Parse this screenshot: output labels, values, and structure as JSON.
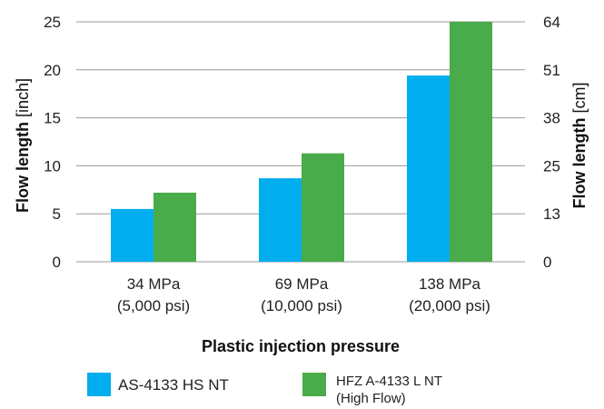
{
  "chart_data": {
    "type": "bar",
    "categories": [
      [
        "34 MPa",
        "(5,000 psi)"
      ],
      [
        "69 MPa",
        "(10,000 psi)"
      ],
      [
        "138 MPa",
        "(20,000 psi)"
      ]
    ],
    "series": [
      {
        "name": "AS-4133 HS NT",
        "values": [
          5.5,
          8.7,
          19.4
        ],
        "color": "#00aeef"
      },
      {
        "name": "HFZ A-4133 L NT (High Flow)",
        "name_lines": [
          "HFZ A-4133 L NT",
          "(High Flow)"
        ],
        "values": [
          7.2,
          11.3,
          25.0
        ],
        "color": "#4aab4a"
      }
    ],
    "xlabel": "Plastic injection pressure",
    "ylabel": {
      "bold": "Flow length",
      "unit": "[inch]"
    },
    "y2label": {
      "bold": "Flow length",
      "unit": "[cm]"
    },
    "ylim": [
      0,
      25
    ],
    "yticks": [
      0,
      5,
      10,
      15,
      20,
      25
    ],
    "y2ticks": [
      0,
      13,
      25,
      38,
      51,
      64
    ],
    "grid": "horizontal",
    "legend": "bottom"
  }
}
